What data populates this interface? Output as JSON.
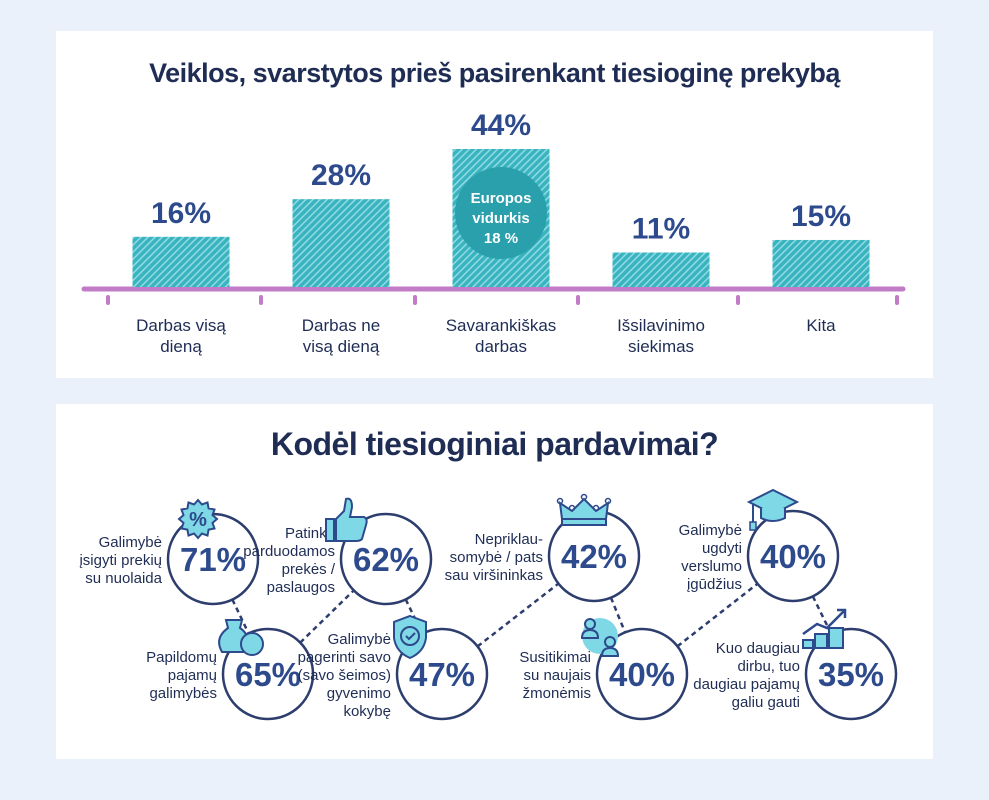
{
  "colors": {
    "background": "#eaf1fb",
    "card": "#ffffff",
    "title": "#1f2d55",
    "value": "#2d4a8c",
    "bar": "#38b3c0",
    "bar_stripe": "#8fd9e0",
    "europe_circle": "#2aa0ad",
    "axis": "#c27bc6",
    "circle_stroke": "#2d3e6e",
    "icon_fill": "#7fd8e6",
    "icon_stroke": "#2d4a8c"
  },
  "chart_data": [
    {
      "type": "bar",
      "title": "Veiklos, svarstytos prieš pasirenkant tiesioginę prekybą",
      "categories": [
        [
          "Darbas visą",
          "dieną"
        ],
        [
          "Darbas ne",
          "visą dieną"
        ],
        [
          "Savarankiškas",
          "darbas"
        ],
        [
          "Išsilavinimo",
          "siekimas"
        ],
        [
          "Kita"
        ]
      ],
      "values": [
        16,
        28,
        44,
        11,
        15
      ],
      "value_labels": [
        "16%",
        "28%",
        "44%",
        "11%",
        "15%"
      ],
      "unit": "%",
      "ylim": [
        0,
        50
      ],
      "grid": false,
      "xlabel": "",
      "ylabel": "",
      "annotation": {
        "bar_index": 2,
        "lines": [
          "Europos",
          "vidurkis",
          "18 %"
        ]
      }
    },
    {
      "type": "table",
      "title": "Kodėl tiesioginiai pardavimai?",
      "items": [
        {
          "value": 71,
          "label": "71%",
          "text": [
            "Galimybė",
            "įsigyti prekių",
            "su nuolaida"
          ],
          "icon": "percent-badge-icon",
          "row": "top"
        },
        {
          "value": 65,
          "label": "65%",
          "text": [
            "Papildomų",
            "pajamų",
            "galimybės"
          ],
          "icon": "money-bag-icon",
          "row": "bottom"
        },
        {
          "value": 62,
          "label": "62%",
          "text": [
            "Patinka",
            "parduodamos",
            "prekės /",
            "paslaugos"
          ],
          "icon": "thumbs-up-icon",
          "row": "top"
        },
        {
          "value": 47,
          "label": "47%",
          "text": [
            "Galimybė",
            "pagerinti savo",
            "(savo šeimos)",
            "gyvenimo",
            "kokybę"
          ],
          "icon": "shield-check-icon",
          "row": "bottom"
        },
        {
          "value": 42,
          "label": "42%",
          "text": [
            "Nepriklau-",
            "somybė / pats",
            "sau viršininkas"
          ],
          "icon": "crown-icon",
          "row": "top"
        },
        {
          "value": 40,
          "label": "40%",
          "text": [
            "Susitikimai",
            "su naujais",
            "žmonėmis"
          ],
          "icon": "people-icon",
          "row": "bottom"
        },
        {
          "value": 40,
          "label": "40%",
          "text": [
            "Galimybė",
            "ugdyti",
            "verslumo",
            "įgūdžius"
          ],
          "icon": "graduation-cap-icon",
          "row": "top"
        },
        {
          "value": 35,
          "label": "35%",
          "text": [
            "Kuo daugiau",
            "dirbu, tuo",
            "daugiau pajamų",
            "galiu gauti"
          ],
          "icon": "growth-chart-icon",
          "row": "bottom"
        }
      ]
    }
  ]
}
